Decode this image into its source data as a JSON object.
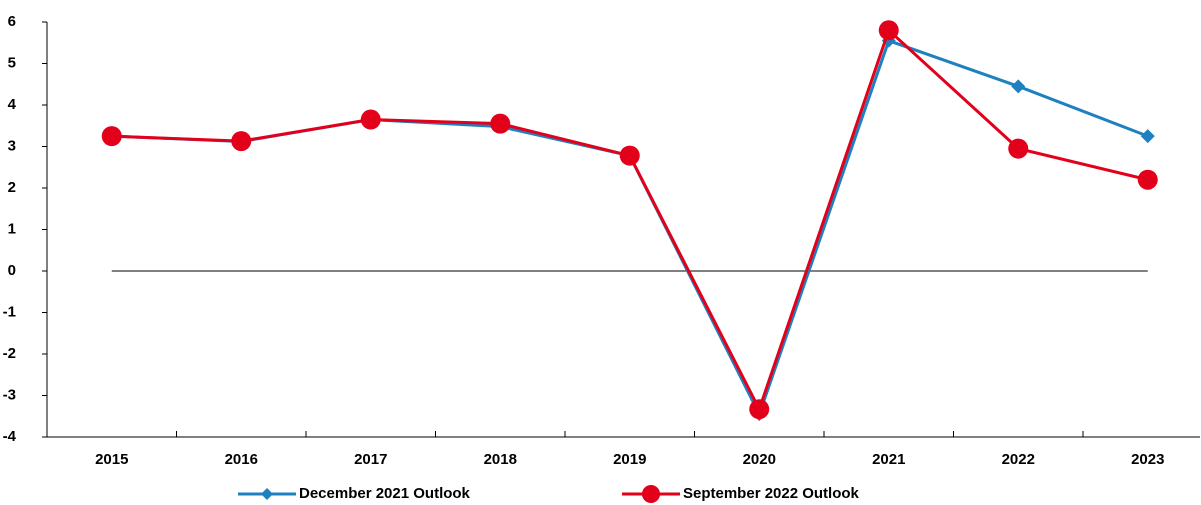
{
  "chart_data": {
    "type": "line",
    "categories": [
      "2015",
      "2016",
      "2017",
      "2018",
      "2019",
      "2020",
      "2021",
      "2022",
      "2023"
    ],
    "series": [
      {
        "name": "December 2021 Outlook",
        "color": "#1f80c0",
        "marker": "diamond",
        "values": [
          3.25,
          3.12,
          3.65,
          3.48,
          2.78,
          -3.45,
          5.55,
          4.45,
          3.25
        ]
      },
      {
        "name": "September 2022 Outlook",
        "color": "#e3001b",
        "marker": "circle",
        "values": [
          3.25,
          3.13,
          3.65,
          3.55,
          2.78,
          -3.33,
          5.8,
          2.95,
          2.2
        ]
      }
    ],
    "ylim": [
      -4,
      6
    ],
    "yticks": [
      -4,
      -3,
      -2,
      -1,
      0,
      1,
      2,
      3,
      4,
      5,
      6
    ],
    "legend": "bottom"
  }
}
